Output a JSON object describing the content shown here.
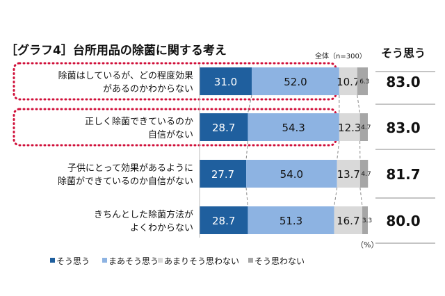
{
  "chart_data": {
    "type": "bar",
    "stacked": true,
    "orientation": "horizontal",
    "title": "［グラフ4］台所用品の除菌に関する考え",
    "subtitle": "全体（n=300）",
    "unit_label": "（%）",
    "categories": [
      [
        "除菌はしているが、どの程度効果",
        "があるのかわからない"
      ],
      [
        "正しく除菌できているのか",
        "自信がない"
      ],
      [
        "子供にとって効果があるように",
        "除菌ができているのか自信がない"
      ],
      [
        "きちんとした除菌方法が",
        "よくわからない"
      ]
    ],
    "series": [
      {
        "name": "そう思う",
        "color": "#1f5f9e",
        "values": [
          31.0,
          28.7,
          27.7,
          28.7
        ]
      },
      {
        "name": "まあそう思う",
        "color": "#8db3e2",
        "values": [
          52.0,
          54.3,
          54.0,
          51.3
        ]
      },
      {
        "name": "あまりそう思わない",
        "color": "#d9d9d9",
        "values": [
          10.7,
          12.3,
          13.7,
          16.7
        ]
      },
      {
        "name": "そう思わない",
        "color": "#a6a6a6",
        "values": [
          6.3,
          4.7,
          4.7,
          3.3
        ]
      }
    ],
    "summary_header": "そう思う",
    "summary_values": [
      "83.0",
      "83.0",
      "81.7",
      "80.0"
    ],
    "highlighted_rows": [
      0,
      1
    ],
    "highlight_color": "#d0103a",
    "xlim": [
      0,
      100
    ]
  }
}
